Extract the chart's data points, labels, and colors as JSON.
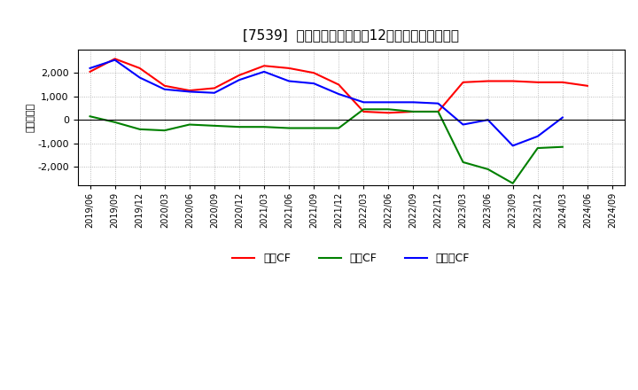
{
  "title": "[7539]  キャッシュフローの12か月移動合計の推移",
  "ylabel": "（百万円）",
  "background_color": "#ffffff",
  "grid_color": "#aaaaaa",
  "x_labels": [
    "2019/06",
    "2019/09",
    "2019/12",
    "2020/03",
    "2020/06",
    "2020/09",
    "2020/12",
    "2021/03",
    "2021/06",
    "2021/09",
    "2021/12",
    "2022/03",
    "2022/06",
    "2022/09",
    "2022/12",
    "2023/03",
    "2023/06",
    "2023/09",
    "2023/12",
    "2024/03",
    "2024/06",
    "2024/09"
  ],
  "operating_cf": [
    2050,
    2600,
    2200,
    1450,
    1250,
    1350,
    1900,
    2300,
    2200,
    2000,
    1500,
    350,
    300,
    350,
    350,
    1600,
    1650,
    1650,
    1600,
    1600,
    1450,
    null
  ],
  "investing_cf": [
    150,
    -100,
    -400,
    -450,
    -200,
    -250,
    -300,
    -300,
    -350,
    -350,
    -350,
    450,
    450,
    350,
    350,
    -1800,
    -2100,
    -2700,
    -1200,
    -1150,
    null,
    null
  ],
  "free_cf": [
    2200,
    2550,
    1800,
    1300,
    1200,
    1150,
    1700,
    2050,
    1650,
    1550,
    1100,
    750,
    750,
    750,
    700,
    -200,
    0,
    -1100,
    -700,
    100,
    null,
    null
  ],
  "operating_color": "#ff0000",
  "investing_color": "#008000",
  "free_color": "#0000ff",
  "ylim": [
    -2800,
    3000
  ],
  "yticks": [
    -2000,
    -1000,
    0,
    1000,
    2000
  ],
  "legend_labels": [
    "営業CF",
    "投資CF",
    "フリーCF"
  ]
}
